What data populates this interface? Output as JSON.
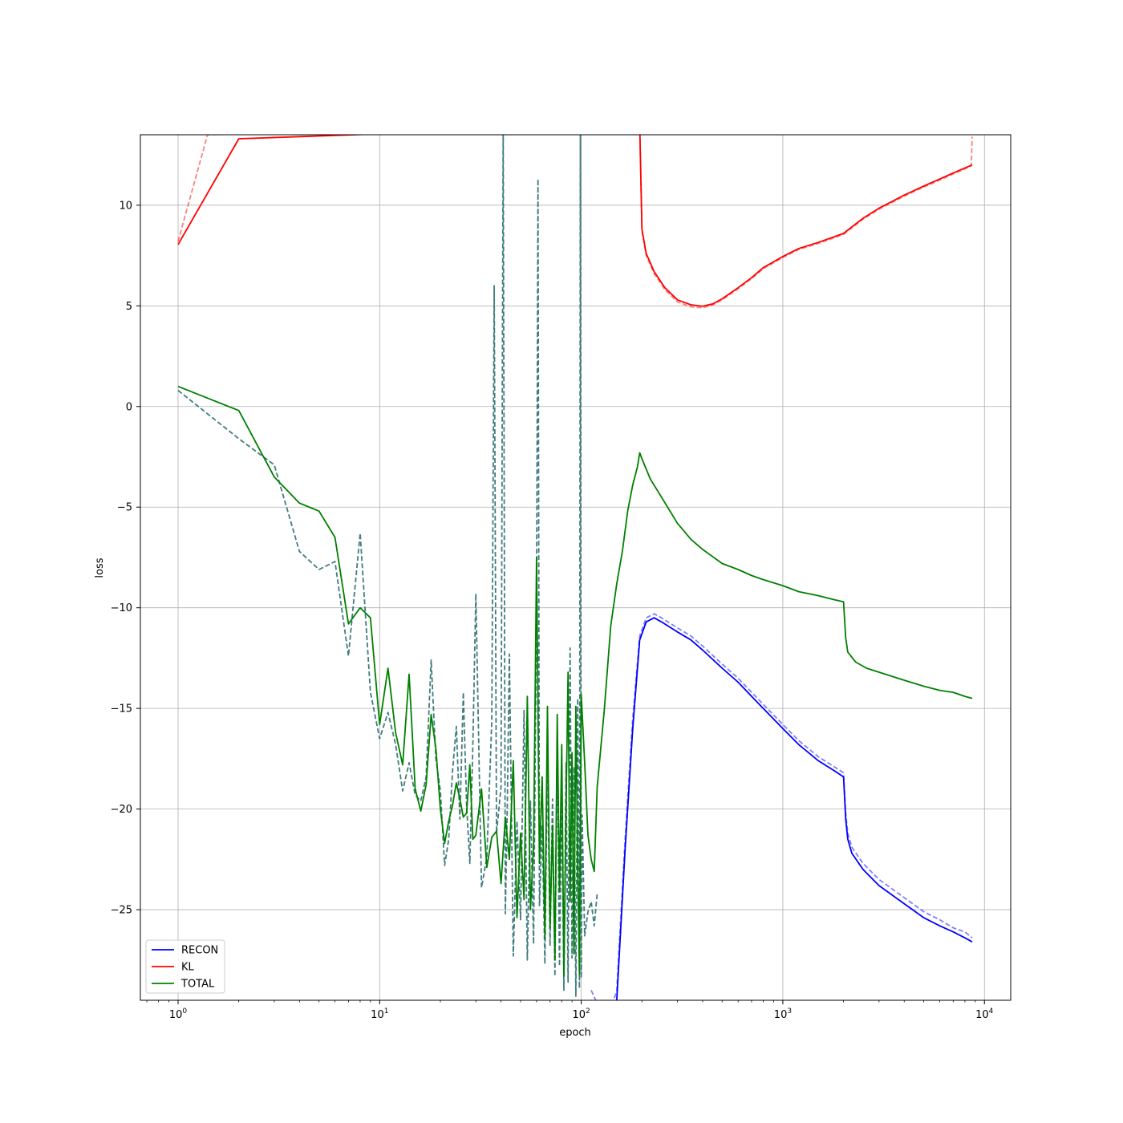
{
  "chart_data": {
    "type": "line",
    "title": "",
    "xlabel": "epoch",
    "ylabel": "loss",
    "xscale": "log",
    "xlim": [
      0.65,
      13500
    ],
    "ylim": [
      -29.5,
      13.5
    ],
    "grid": true,
    "legend": {
      "placement": "lower-left",
      "entries": [
        "RECON",
        "KL",
        "TOTAL"
      ]
    },
    "x_ticks": [
      {
        "value": 1,
        "base": "10",
        "exp": "0"
      },
      {
        "value": 10,
        "base": "10",
        "exp": "1"
      },
      {
        "value": 100,
        "base": "10",
        "exp": "2"
      },
      {
        "value": 1000,
        "base": "10",
        "exp": "3"
      },
      {
        "value": 10000,
        "base": "10",
        "exp": "4"
      }
    ],
    "y_ticks": [
      {
        "value": 10,
        "label": "10"
      },
      {
        "value": 5,
        "label": "5"
      },
      {
        "value": 0,
        "label": "0"
      },
      {
        "value": -5,
        "label": "−5"
      },
      {
        "value": -10,
        "label": "−10"
      },
      {
        "value": -15,
        "label": "−15"
      },
      {
        "value": -20,
        "label": "−20"
      },
      {
        "value": -25,
        "label": "−25"
      }
    ],
    "series": [
      {
        "name": "RECON",
        "color": "#0000ff",
        "style": "solid",
        "x": [
          112,
          118,
          125,
          135,
          150,
          165,
          180,
          195,
          210,
          230,
          250,
          300,
          350,
          400,
          500,
          600,
          700,
          800,
          1000,
          1200,
          1500,
          1800,
          2000,
          2050,
          2100,
          2200,
          2500,
          3000,
          4000,
          5000,
          6000,
          7000,
          8000,
          8700
        ],
        "y": [
          -29.5,
          -31,
          -31.5,
          -31,
          -29.5,
          -22,
          -16,
          -11.6,
          -10.7,
          -10.5,
          -10.7,
          -11.2,
          -11.6,
          -12.1,
          -13,
          -13.7,
          -14.4,
          -15,
          -16,
          -16.8,
          -17.6,
          -18.1,
          -18.4,
          -20.5,
          -21.5,
          -22.2,
          -23,
          -23.8,
          -24.7,
          -25.4,
          -25.8,
          -26.1,
          -26.4,
          -26.6
        ]
      },
      {
        "name": "RECON (val)",
        "color": "#0000ff",
        "style": "dashed",
        "alpha": 0.5,
        "x": [
          112,
          118,
          125,
          135,
          150,
          165,
          180,
          195,
          210,
          230,
          250,
          300,
          350,
          400,
          500,
          600,
          700,
          800,
          1000,
          1200,
          1500,
          1800,
          2000,
          2050,
          2100,
          2200,
          2500,
          3000,
          4000,
          5000,
          6000,
          7000,
          8000,
          8700
        ],
        "y": [
          -29,
          -29.5,
          -30,
          -30.5,
          -29,
          -21.5,
          -15.5,
          -11.4,
          -10.5,
          -10.3,
          -10.5,
          -11,
          -11.4,
          -11.9,
          -12.8,
          -13.5,
          -14.2,
          -14.8,
          -15.8,
          -16.6,
          -17.4,
          -17.9,
          -18.2,
          -20.2,
          -21.2,
          -21.9,
          -22.7,
          -23.5,
          -24.4,
          -25.1,
          -25.5,
          -25.9,
          -26.1,
          -26.4
        ]
      },
      {
        "name": "KL",
        "color": "#ff0000",
        "style": "solid",
        "x": [
          1,
          2,
          195,
          200,
          210,
          230,
          260,
          300,
          350,
          400,
          450,
          500,
          600,
          700,
          800,
          1000,
          1200,
          1500,
          2000,
          2500,
          3000,
          4000,
          5000,
          6000,
          7000,
          8000,
          8700
        ],
        "y": [
          8.05,
          13.3,
          14,
          8.8,
          7.6,
          6.7,
          5.9,
          5.3,
          5.05,
          4.98,
          5.1,
          5.35,
          5.9,
          6.4,
          6.9,
          7.45,
          7.85,
          8.15,
          8.6,
          9.35,
          9.85,
          10.5,
          10.95,
          11.3,
          11.6,
          11.85,
          12
        ]
      },
      {
        "name": "KL (val)",
        "color": "#ff0000",
        "style": "dashed",
        "alpha": 0.5,
        "x": [
          1,
          1.4,
          195,
          200,
          210,
          230,
          260,
          300,
          350,
          400,
          450,
          500,
          600,
          700,
          800,
          1000,
          1200,
          1500,
          2000,
          2500,
          3000,
          4000,
          5000,
          6000,
          7000,
          8000,
          8600,
          8700
        ],
        "y": [
          8.2,
          13.5,
          14,
          8.7,
          7.5,
          6.6,
          5.8,
          5.2,
          4.95,
          4.9,
          5.05,
          5.3,
          5.85,
          6.35,
          6.85,
          7.4,
          7.8,
          8.1,
          8.55,
          9.3,
          9.8,
          10.45,
          10.9,
          11.25,
          11.55,
          11.8,
          11.95,
          13.4
        ]
      },
      {
        "name": "TOTAL",
        "color": "#008000",
        "style": "solid",
        "x": [
          1,
          2,
          3,
          4,
          5,
          6,
          7,
          8,
          9,
          10,
          11,
          12,
          13,
          14,
          15,
          16,
          17,
          18,
          19,
          20,
          21,
          22,
          23,
          24,
          25,
          26,
          27,
          28,
          29,
          30,
          32,
          34,
          36,
          38,
          40,
          42,
          44,
          46,
          48,
          50,
          52,
          54,
          56,
          58,
          60,
          62,
          64,
          66,
          68,
          70,
          72,
          74,
          76,
          78,
          80,
          82,
          84,
          86,
          88,
          90,
          92,
          94,
          96,
          98,
          100,
          104,
          108,
          112,
          116,
          120,
          130,
          140,
          150,
          160,
          170,
          180,
          190,
          195,
          200,
          220,
          250,
          300,
          350,
          400,
          500,
          600,
          700,
          800,
          1000,
          1200,
          1500,
          1800,
          2000,
          2050,
          2100,
          2300,
          2600,
          3000,
          4000,
          5000,
          6000,
          7000,
          8000,
          8700
        ],
        "y": [
          1,
          -0.2,
          -3.5,
          -4.8,
          -5.2,
          -6.5,
          -10.8,
          -10,
          -10.5,
          -15.8,
          -13,
          -16.2,
          -17.8,
          -13.3,
          -19,
          -20.1,
          -18.8,
          -15.3,
          -17,
          -20,
          -21.7,
          -20.6,
          -19.8,
          -18.7,
          -19.5,
          -20.4,
          -20.2,
          -17.8,
          -21.5,
          -21.3,
          -19,
          -22.9,
          -21.4,
          -21.1,
          -23.7,
          -20.4,
          -22.5,
          -17.6,
          -25.4,
          -21.2,
          -24.5,
          -14.4,
          -25,
          -21.8,
          -7.5,
          -22.7,
          -18.4,
          -26.4,
          -14.9,
          -25.9,
          -20.8,
          -27.5,
          -15.3,
          -24.1,
          -16.8,
          -28.3,
          -20.2,
          -13.2,
          -24.6,
          -17.2,
          -27.2,
          -14.9,
          -22.9,
          -28.2,
          -14.3,
          -17.7,
          -21.3,
          -22.5,
          -23.1,
          -18.9,
          -15.1,
          -10.9,
          -8.8,
          -7.2,
          -5.2,
          -3.9,
          -3.0,
          -2.3,
          -2.6,
          -3.6,
          -4.5,
          -5.8,
          -6.6,
          -7.1,
          -7.8,
          -8.1,
          -8.4,
          -8.6,
          -8.9,
          -9.2,
          -9.4,
          -9.6,
          -9.7,
          -11.5,
          -12.2,
          -12.7,
          -13,
          -13.2,
          -13.6,
          -13.9,
          -14.1,
          -14.2,
          -14.4,
          -14.5
        ]
      },
      {
        "name": "TOTAL (val)",
        "color": "#2e6e70",
        "style": "dashed",
        "alpha": 0.9,
        "x": [
          1,
          2,
          3,
          4,
          5,
          6,
          7,
          8,
          9,
          10,
          11,
          12,
          13,
          14,
          15,
          16,
          17,
          18,
          19,
          20,
          21,
          22,
          23,
          24,
          25,
          26,
          27,
          28,
          29,
          30,
          32,
          34,
          36,
          37,
          38,
          40,
          41,
          42,
          43,
          44,
          46,
          48,
          50,
          52,
          54,
          56,
          58,
          60,
          61,
          62,
          64,
          66,
          68,
          70,
          72,
          74,
          76,
          78,
          80,
          82,
          84,
          86,
          88,
          90,
          92,
          94,
          96,
          98,
          99,
          100,
          101,
          104,
          108,
          112,
          116,
          120
        ],
        "y": [
          0.8,
          -1.6,
          -2.9,
          -7.2,
          -8.1,
          -7.7,
          -12.4,
          -6.3,
          -14.2,
          -16.5,
          -15.2,
          -16.8,
          -19.1,
          -17.7,
          -19.3,
          -19.6,
          -18.4,
          -12.6,
          -17.5,
          -19.1,
          -22.8,
          -21.5,
          -18.1,
          -15.9,
          -20.5,
          -14.2,
          -19.8,
          -22.7,
          -16.8,
          -9.3,
          -23.9,
          -22.4,
          -15.6,
          6,
          -21.2,
          -18.9,
          14,
          -25.2,
          -19.7,
          -12.3,
          -27.3,
          -20.6,
          -25.5,
          -15.1,
          -27.5,
          -19.6,
          -26.7,
          -9.7,
          11.3,
          -24.8,
          -20.8,
          -27.7,
          -17.2,
          -26.8,
          -19.5,
          -28.3,
          -16.4,
          -27.8,
          -19.2,
          -29,
          -17.7,
          -28.6,
          -12,
          -27.4,
          -17.9,
          -29.3,
          -14.5,
          -28.9,
          14,
          -28.4,
          -20.3,
          -26.3,
          -25.1,
          -24.6,
          -25.8,
          -24.2
        ]
      }
    ]
  }
}
